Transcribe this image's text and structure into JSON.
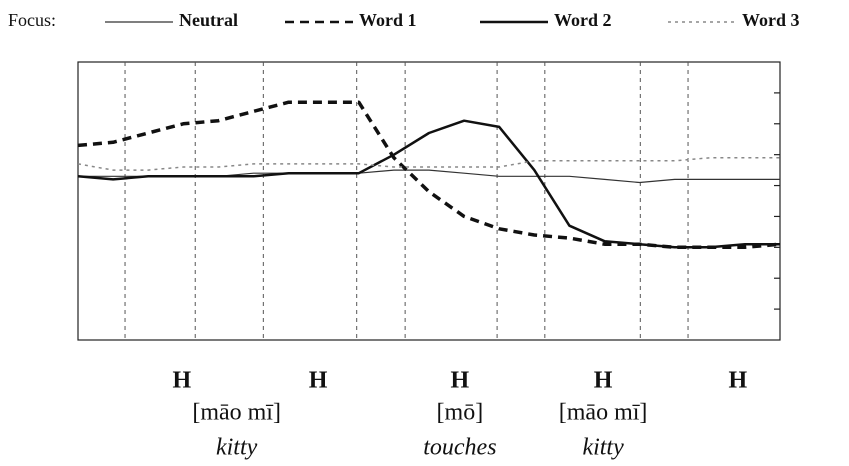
{
  "chart_data": {
    "type": "line",
    "legend_title": "Focus:",
    "xlim": [
      0,
      100
    ],
    "ylim": [
      0,
      9
    ],
    "yticks": [
      1,
      2,
      3,
      4,
      5,
      6,
      7,
      8
    ],
    "boundaries": [
      6.7,
      16.7,
      26.4,
      39.7,
      46.6,
      59.7,
      66.5,
      80.1,
      86.9
    ],
    "x": [
      0,
      5,
      10,
      15,
      20,
      25,
      30,
      35,
      40,
      45,
      50,
      55,
      60,
      65,
      70,
      75,
      80,
      85,
      90,
      95,
      100
    ],
    "series": [
      {
        "name": "Neutral",
        "color": "#333333",
        "line_style": "solid",
        "width": 1.2,
        "values": [
          5.3,
          5.3,
          5.3,
          5.3,
          5.3,
          5.4,
          5.4,
          5.4,
          5.4,
          5.5,
          5.5,
          5.4,
          5.3,
          5.3,
          5.3,
          5.2,
          5.1,
          5.2,
          5.2,
          5.2,
          5.2
        ]
      },
      {
        "name": "Word 1",
        "color": "#111111",
        "line_style": "dashed",
        "width": 3.5,
        "values": [
          6.3,
          6.4,
          6.7,
          7.0,
          7.1,
          7.4,
          7.7,
          7.7,
          7.7,
          5.9,
          4.8,
          4.0,
          3.6,
          3.4,
          3.3,
          3.1,
          3.1,
          3.0,
          3.0,
          3.0,
          3.1
        ]
      },
      {
        "name": "Word 2",
        "color": "#111111",
        "line_style": "solid",
        "width": 2.5,
        "values": [
          5.3,
          5.2,
          5.3,
          5.3,
          5.3,
          5.3,
          5.4,
          5.4,
          5.4,
          6.0,
          6.7,
          7.1,
          6.9,
          5.5,
          3.7,
          3.2,
          3.1,
          3.0,
          3.0,
          3.1,
          3.1
        ]
      },
      {
        "name": "Word 3",
        "color": "#888888",
        "line_style": "dotted",
        "width": 1.5,
        "values": [
          5.7,
          5.5,
          5.5,
          5.6,
          5.6,
          5.7,
          5.7,
          5.7,
          5.7,
          5.6,
          5.6,
          5.6,
          5.6,
          5.8,
          5.8,
          5.8,
          5.8,
          5.8,
          5.9,
          5.9,
          5.9
        ]
      }
    ],
    "tone_labels": [
      {
        "x": 14.8,
        "label": "H"
      },
      {
        "x": 34.2,
        "label": "H"
      },
      {
        "x": 54.4,
        "label": "H"
      },
      {
        "x": 74.8,
        "label": "H"
      },
      {
        "x": 94.0,
        "label": "H"
      }
    ],
    "words": [
      {
        "x": 22.6,
        "text": "[māo mī]",
        "gloss": "kitty"
      },
      {
        "x": 54.4,
        "text": "[mō]",
        "gloss": "touches"
      },
      {
        "x": 74.8,
        "text": "[māo mī]",
        "gloss": "kitty"
      }
    ]
  }
}
